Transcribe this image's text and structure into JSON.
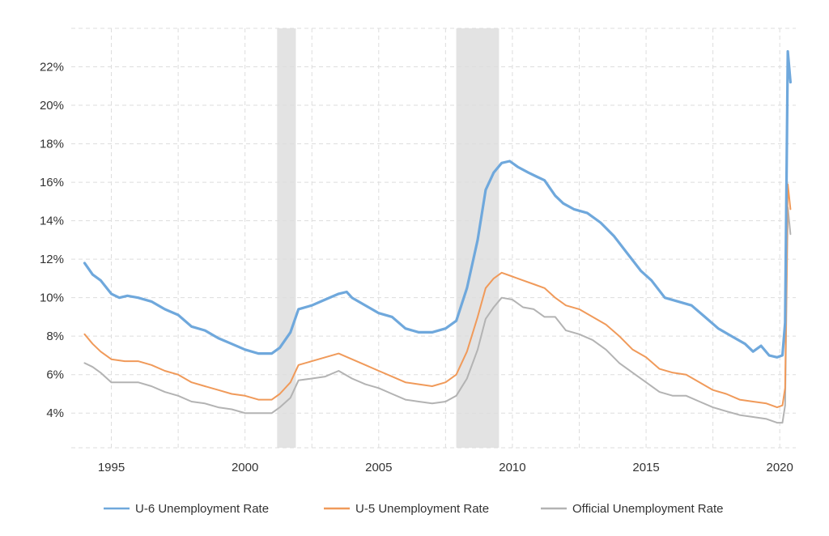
{
  "chart_data": {
    "type": "line",
    "title": "",
    "xlabel": "",
    "ylabel": "",
    "xlim": [
      1993.5,
      2020.6
    ],
    "ylim": [
      2.2,
      24.0
    ],
    "y_ticks": [
      4,
      6,
      8,
      10,
      12,
      14,
      16,
      18,
      20,
      22
    ],
    "y_tick_labels": [
      "4%",
      "6%",
      "8%",
      "10%",
      "12%",
      "14%",
      "16%",
      "18%",
      "20%",
      "22%"
    ],
    "x_ticks": [
      1995,
      2000,
      2005,
      2010,
      2015,
      2020
    ],
    "x_tick_labels": [
      "1995",
      "2000",
      "2005",
      "2010",
      "2015",
      "2020"
    ],
    "grid": true,
    "legend_position": "bottom",
    "recessions": [
      {
        "start": 2001.2,
        "end": 2001.9
      },
      {
        "start": 2007.9,
        "end": 2009.5
      }
    ],
    "recession_color": "#e3e3e3",
    "series": [
      {
        "name": "U-6 Unemployment Rate",
        "color": "#6fa8dc",
        "points": [
          [
            1994.0,
            11.8
          ],
          [
            1994.3,
            11.2
          ],
          [
            1994.6,
            10.9
          ],
          [
            1995.0,
            10.2
          ],
          [
            1995.3,
            10.0
          ],
          [
            1995.6,
            10.1
          ],
          [
            1996.0,
            10.0
          ],
          [
            1996.5,
            9.8
          ],
          [
            1997.0,
            9.4
          ],
          [
            1997.5,
            9.1
          ],
          [
            1998.0,
            8.5
          ],
          [
            1998.5,
            8.3
          ],
          [
            1999.0,
            7.9
          ],
          [
            1999.5,
            7.6
          ],
          [
            2000.0,
            7.3
          ],
          [
            2000.5,
            7.1
          ],
          [
            2001.0,
            7.1
          ],
          [
            2001.3,
            7.4
          ],
          [
            2001.7,
            8.2
          ],
          [
            2002.0,
            9.4
          ],
          [
            2002.5,
            9.6
          ],
          [
            2003.0,
            9.9
          ],
          [
            2003.5,
            10.2
          ],
          [
            2003.8,
            10.3
          ],
          [
            2004.0,
            10.0
          ],
          [
            2004.5,
            9.6
          ],
          [
            2005.0,
            9.2
          ],
          [
            2005.5,
            9.0
          ],
          [
            2006.0,
            8.4
          ],
          [
            2006.5,
            8.2
          ],
          [
            2007.0,
            8.2
          ],
          [
            2007.5,
            8.4
          ],
          [
            2007.9,
            8.8
          ],
          [
            2008.3,
            10.5
          ],
          [
            2008.7,
            13.0
          ],
          [
            2009.0,
            15.6
          ],
          [
            2009.3,
            16.5
          ],
          [
            2009.6,
            17.0
          ],
          [
            2009.9,
            17.1
          ],
          [
            2010.2,
            16.8
          ],
          [
            2010.6,
            16.5
          ],
          [
            2010.9,
            16.3
          ],
          [
            2011.2,
            16.1
          ],
          [
            2011.6,
            15.3
          ],
          [
            2011.9,
            14.9
          ],
          [
            2012.3,
            14.6
          ],
          [
            2012.8,
            14.4
          ],
          [
            2013.3,
            13.9
          ],
          [
            2013.8,
            13.2
          ],
          [
            2014.3,
            12.3
          ],
          [
            2014.8,
            11.4
          ],
          [
            2015.2,
            10.9
          ],
          [
            2015.7,
            10.0
          ],
          [
            2016.2,
            9.8
          ],
          [
            2016.7,
            9.6
          ],
          [
            2017.2,
            9.0
          ],
          [
            2017.7,
            8.4
          ],
          [
            2018.2,
            8.0
          ],
          [
            2018.7,
            7.6
          ],
          [
            2019.0,
            7.2
          ],
          [
            2019.3,
            7.5
          ],
          [
            2019.6,
            7.0
          ],
          [
            2019.9,
            6.9
          ],
          [
            2020.1,
            7.0
          ],
          [
            2020.2,
            8.7
          ],
          [
            2020.3,
            22.8
          ],
          [
            2020.4,
            21.2
          ]
        ]
      },
      {
        "name": "U-5 Unemployment Rate",
        "color": "#f09a5a",
        "points": [
          [
            1994.0,
            8.1
          ],
          [
            1994.3,
            7.6
          ],
          [
            1994.6,
            7.2
          ],
          [
            1995.0,
            6.8
          ],
          [
            1995.5,
            6.7
          ],
          [
            1996.0,
            6.7
          ],
          [
            1996.5,
            6.5
          ],
          [
            1997.0,
            6.2
          ],
          [
            1997.5,
            6.0
          ],
          [
            1998.0,
            5.6
          ],
          [
            1998.5,
            5.4
          ],
          [
            1999.0,
            5.2
          ],
          [
            1999.5,
            5.0
          ],
          [
            2000.0,
            4.9
          ],
          [
            2000.5,
            4.7
          ],
          [
            2001.0,
            4.7
          ],
          [
            2001.3,
            5.0
          ],
          [
            2001.7,
            5.6
          ],
          [
            2002.0,
            6.5
          ],
          [
            2002.5,
            6.7
          ],
          [
            2003.0,
            6.9
          ],
          [
            2003.5,
            7.1
          ],
          [
            2004.0,
            6.8
          ],
          [
            2004.5,
            6.5
          ],
          [
            2005.0,
            6.2
          ],
          [
            2005.5,
            5.9
          ],
          [
            2006.0,
            5.6
          ],
          [
            2006.5,
            5.5
          ],
          [
            2007.0,
            5.4
          ],
          [
            2007.5,
            5.6
          ],
          [
            2007.9,
            6.0
          ],
          [
            2008.3,
            7.2
          ],
          [
            2008.7,
            9.0
          ],
          [
            2009.0,
            10.5
          ],
          [
            2009.3,
            11.0
          ],
          [
            2009.6,
            11.3
          ],
          [
            2010.0,
            11.1
          ],
          [
            2010.4,
            10.9
          ],
          [
            2010.8,
            10.7
          ],
          [
            2011.2,
            10.5
          ],
          [
            2011.6,
            10.0
          ],
          [
            2012.0,
            9.6
          ],
          [
            2012.5,
            9.4
          ],
          [
            2013.0,
            9.0
          ],
          [
            2013.5,
            8.6
          ],
          [
            2014.0,
            8.0
          ],
          [
            2014.5,
            7.3
          ],
          [
            2015.0,
            6.9
          ],
          [
            2015.5,
            6.3
          ],
          [
            2016.0,
            6.1
          ],
          [
            2016.5,
            6.0
          ],
          [
            2017.0,
            5.6
          ],
          [
            2017.5,
            5.2
          ],
          [
            2018.0,
            5.0
          ],
          [
            2018.5,
            4.7
          ],
          [
            2019.0,
            4.6
          ],
          [
            2019.5,
            4.5
          ],
          [
            2019.9,
            4.3
          ],
          [
            2020.1,
            4.4
          ],
          [
            2020.2,
            5.3
          ],
          [
            2020.3,
            15.9
          ],
          [
            2020.4,
            14.6
          ]
        ]
      },
      {
        "name": "Official Unemployment Rate",
        "color": "#b3b3b3",
        "points": [
          [
            1994.0,
            6.6
          ],
          [
            1994.3,
            6.4
          ],
          [
            1994.6,
            6.1
          ],
          [
            1995.0,
            5.6
          ],
          [
            1995.5,
            5.6
          ],
          [
            1996.0,
            5.6
          ],
          [
            1996.5,
            5.4
          ],
          [
            1997.0,
            5.1
          ],
          [
            1997.5,
            4.9
          ],
          [
            1998.0,
            4.6
          ],
          [
            1998.5,
            4.5
          ],
          [
            1999.0,
            4.3
          ],
          [
            1999.5,
            4.2
          ],
          [
            2000.0,
            4.0
          ],
          [
            2000.5,
            4.0
          ],
          [
            2001.0,
            4.0
          ],
          [
            2001.3,
            4.3
          ],
          [
            2001.7,
            4.8
          ],
          [
            2002.0,
            5.7
          ],
          [
            2002.5,
            5.8
          ],
          [
            2003.0,
            5.9
          ],
          [
            2003.5,
            6.2
          ],
          [
            2004.0,
            5.8
          ],
          [
            2004.5,
            5.5
          ],
          [
            2005.0,
            5.3
          ],
          [
            2005.5,
            5.0
          ],
          [
            2006.0,
            4.7
          ],
          [
            2006.5,
            4.6
          ],
          [
            2007.0,
            4.5
          ],
          [
            2007.5,
            4.6
          ],
          [
            2007.9,
            4.9
          ],
          [
            2008.3,
            5.8
          ],
          [
            2008.7,
            7.3
          ],
          [
            2009.0,
            8.9
          ],
          [
            2009.3,
            9.5
          ],
          [
            2009.6,
            10.0
          ],
          [
            2010.0,
            9.9
          ],
          [
            2010.4,
            9.5
          ],
          [
            2010.8,
            9.4
          ],
          [
            2011.2,
            9.0
          ],
          [
            2011.6,
            9.0
          ],
          [
            2012.0,
            8.3
          ],
          [
            2012.5,
            8.1
          ],
          [
            2013.0,
            7.8
          ],
          [
            2013.5,
            7.3
          ],
          [
            2014.0,
            6.6
          ],
          [
            2014.5,
            6.1
          ],
          [
            2015.0,
            5.6
          ],
          [
            2015.5,
            5.1
          ],
          [
            2016.0,
            4.9
          ],
          [
            2016.5,
            4.9
          ],
          [
            2017.0,
            4.6
          ],
          [
            2017.5,
            4.3
          ],
          [
            2018.0,
            4.1
          ],
          [
            2018.5,
            3.9
          ],
          [
            2019.0,
            3.8
          ],
          [
            2019.5,
            3.7
          ],
          [
            2019.9,
            3.5
          ],
          [
            2020.1,
            3.5
          ],
          [
            2020.2,
            4.4
          ],
          [
            2020.3,
            14.7
          ],
          [
            2020.4,
            13.3
          ]
        ]
      }
    ]
  }
}
